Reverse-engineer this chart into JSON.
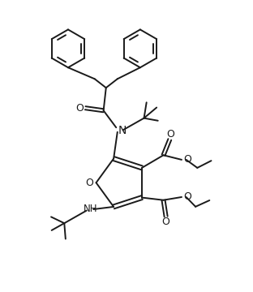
{
  "background_color": "#ffffff",
  "line_color": "#1a1a1a",
  "line_width": 1.4,
  "figsize": [
    3.12,
    3.6
  ],
  "dpi": 100,
  "xlim": [
    0,
    10
  ],
  "ylim": [
    0,
    11.5
  ]
}
